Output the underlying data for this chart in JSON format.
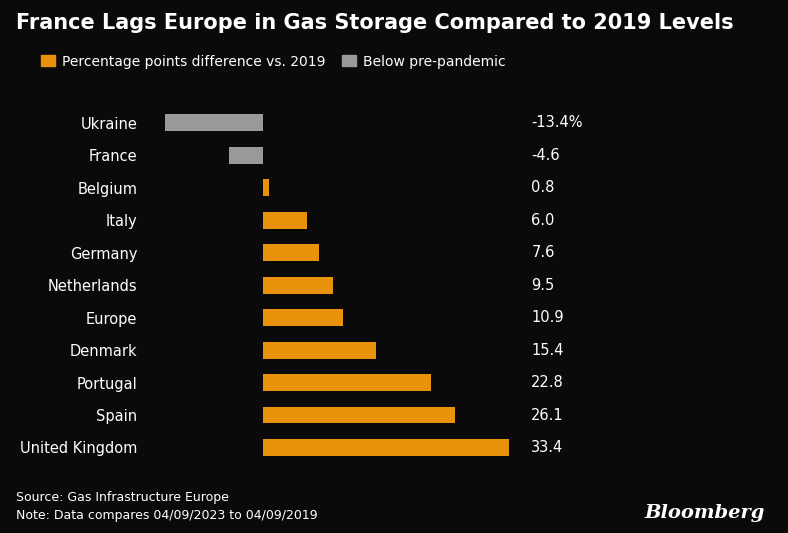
{
  "title": "France Lags Europe in Gas Storage Compared to 2019 Levels",
  "categories": [
    "Ukraine",
    "France",
    "Belgium",
    "Italy",
    "Germany",
    "Netherlands",
    "Europe",
    "Denmark",
    "Portugal",
    "Spain",
    "United Kingdom"
  ],
  "values": [
    -13.4,
    -4.6,
    0.8,
    6.0,
    7.6,
    9.5,
    10.9,
    15.4,
    22.8,
    26.1,
    33.4
  ],
  "labels": [
    "-13.4%",
    "-4.6",
    "0.8",
    "6.0",
    "7.6",
    "9.5",
    "10.9",
    "15.4",
    "22.8",
    "26.1",
    "33.4"
  ],
  "bar_colors": [
    "#999999",
    "#999999",
    "#E8920C",
    "#E8920C",
    "#E8920C",
    "#E8920C",
    "#E8920C",
    "#E8920C",
    "#E8920C",
    "#E8920C",
    "#E8920C"
  ],
  "background_color": "#0a0a0a",
  "text_color": "#ffffff",
  "orange_color": "#E8920C",
  "gray_color": "#999999",
  "legend_label_orange": "Percentage points difference vs. 2019",
  "legend_label_gray": "Below pre-pandemic",
  "source_text": "Source: Gas Infrastructure Europe\nNote: Data compares 04/09/2023 to 04/09/2019",
  "bloomberg_text": "Bloomberg",
  "xlim_min": -16,
  "xlim_max": 36,
  "title_fontsize": 15,
  "label_fontsize": 10.5,
  "source_fontsize": 9,
  "bloomberg_fontsize": 14,
  "bar_height": 0.52
}
